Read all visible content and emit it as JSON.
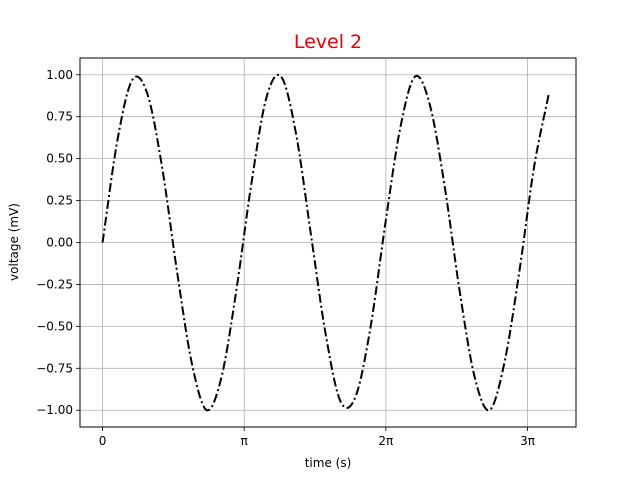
{
  "chart_data": {
    "type": "line",
    "title": "Level 2",
    "title_color": "#e8000b",
    "xlabel": "time (s)",
    "ylabel": "voltage (mV)",
    "grid": true,
    "xlim": [
      -0.5,
      10.5
    ],
    "ylim": [
      -1.1,
      1.1
    ],
    "xticks": [
      {
        "value": 0,
        "label": "0"
      },
      {
        "value": 3.14159,
        "label": "π"
      },
      {
        "value": 6.28319,
        "label": "2π"
      },
      {
        "value": 9.42478,
        "label": "3π"
      }
    ],
    "yticks": [
      {
        "value": 1.0,
        "label": "1.00"
      },
      {
        "value": 0.75,
        "label": "0.75"
      },
      {
        "value": 0.5,
        "label": "0.50"
      },
      {
        "value": 0.25,
        "label": "0.25"
      },
      {
        "value": 0.0,
        "label": "0.00"
      },
      {
        "value": -0.25,
        "label": "−0.25"
      },
      {
        "value": -0.5,
        "label": "−0.50"
      },
      {
        "value": -0.75,
        "label": "−0.75"
      },
      {
        "value": -1.0,
        "label": "−1.00"
      }
    ],
    "series": [
      {
        "line_color": "#000000",
        "line_style": "dashdot",
        "x": [
          0,
          0.33,
          0.66,
          0.99,
          1.32,
          1.65,
          1.98,
          2.31,
          2.64,
          2.97,
          3.3,
          3.63,
          3.96,
          4.29,
          4.62,
          4.95,
          5.28,
          5.61,
          5.94,
          6.27,
          6.6,
          6.93,
          7.26,
          7.59,
          7.92,
          8.25,
          8.58,
          8.91,
          9.24,
          9.57,
          9.9
        ],
        "y": [
          0,
          0.61,
          0.97,
          0.89,
          0.45,
          -0.17,
          -0.72,
          -1.0,
          -0.8,
          -0.28,
          0.35,
          0.86,
          0.99,
          0.65,
          0.05,
          -0.55,
          -0.95,
          -0.92,
          -0.51,
          0.11,
          0.68,
          0.99,
          0.82,
          0.33,
          -0.29,
          -0.8,
          -1.0,
          -0.72,
          -0.18,
          0.45,
          0.89
        ]
      }
    ]
  }
}
